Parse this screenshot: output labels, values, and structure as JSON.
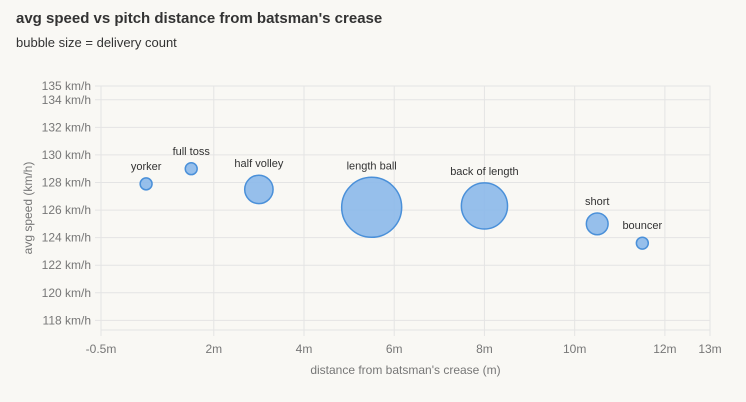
{
  "chart_data": {
    "type": "scatter",
    "title": "avg speed vs pitch distance from batsman's crease",
    "subtitle": "bubble size = delivery count",
    "xlabel": "distance from batsman's crease (m)",
    "ylabel": "avg speed (km/h)",
    "xlim": [
      -0.5,
      13
    ],
    "ylim": [
      117.3,
      135
    ],
    "grid": true,
    "x_ticks": [
      {
        "value": -0.5,
        "label": "-0.5m"
      },
      {
        "value": 2,
        "label": "2m"
      },
      {
        "value": 4,
        "label": "4m"
      },
      {
        "value": 6,
        "label": "6m"
      },
      {
        "value": 8,
        "label": "8m"
      },
      {
        "value": 10,
        "label": "10m"
      },
      {
        "value": 12,
        "label": "12m"
      },
      {
        "value": 13,
        "label": "13m"
      }
    ],
    "y_ticks": [
      {
        "value": 118,
        "label": "118 km/h"
      },
      {
        "value": 120,
        "label": "120 km/h"
      },
      {
        "value": 122,
        "label": "122 km/h"
      },
      {
        "value": 124,
        "label": "124 km/h"
      },
      {
        "value": 126,
        "label": "126 km/h"
      },
      {
        "value": 128,
        "label": "128 km/h"
      },
      {
        "value": 130,
        "label": "130 km/h"
      },
      {
        "value": 132,
        "label": "132 km/h"
      },
      {
        "value": 134,
        "label": "134 km/h"
      },
      {
        "value": 135,
        "label": "135 km/h"
      }
    ],
    "points": [
      {
        "label": "yorker",
        "x": 0.5,
        "y": 127.9,
        "count": 3
      },
      {
        "label": "full toss",
        "x": 1.5,
        "y": 129.0,
        "count": 3
      },
      {
        "label": "half volley",
        "x": 3.0,
        "y": 127.5,
        "count": 17
      },
      {
        "label": "length ball",
        "x": 5.5,
        "y": 126.2,
        "count": 76
      },
      {
        "label": "back of length",
        "x": 8.0,
        "y": 126.3,
        "count": 45
      },
      {
        "label": "short",
        "x": 10.5,
        "y": 125.0,
        "count": 10
      },
      {
        "label": "bouncer",
        "x": 11.5,
        "y": 123.6,
        "count": 3
      }
    ],
    "colors": {
      "bubble_fill": "#8bb8ea",
      "bubble_stroke": "#4a90d9",
      "grid": "#e4e4e4",
      "tick_text": "#777777"
    }
  }
}
